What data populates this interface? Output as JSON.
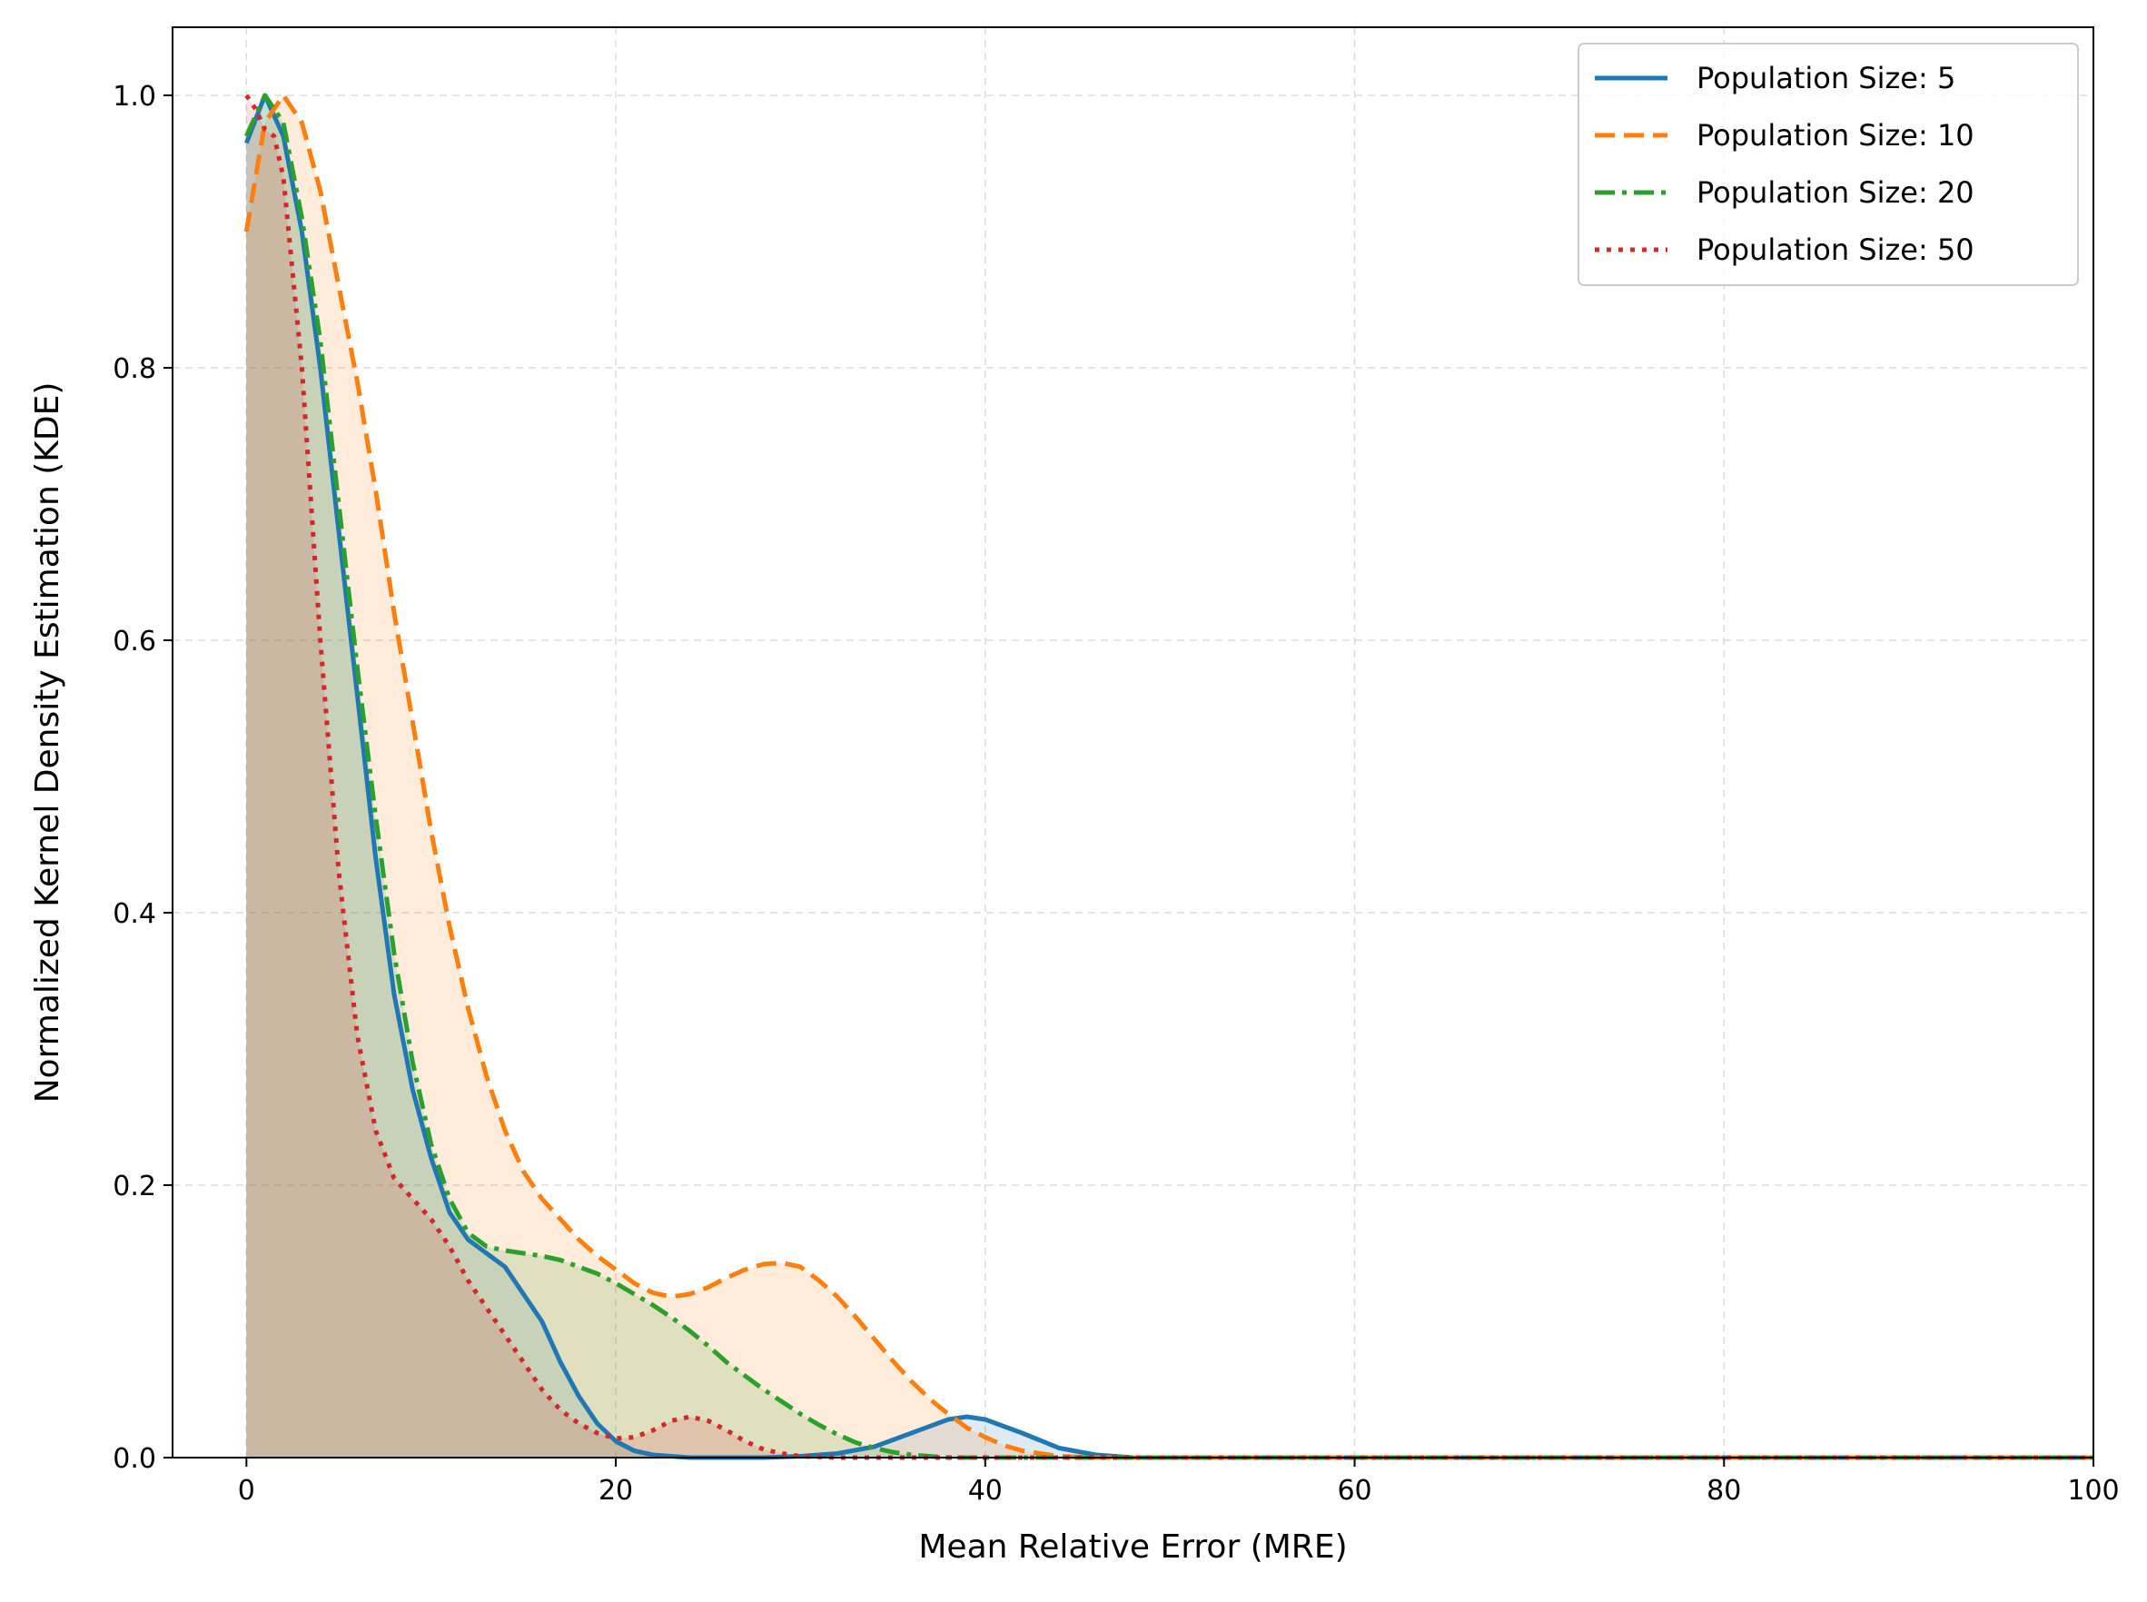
{
  "chart_data": {
    "type": "area",
    "title": "",
    "xlabel": "Mean Relative Error (MRE)",
    "ylabel": "Normalized Kernel Density Estimation (KDE)",
    "xlim": [
      -4,
      100
    ],
    "ylim": [
      0,
      1.05
    ],
    "xticks": [
      0,
      20,
      40,
      60,
      80,
      100
    ],
    "yticks": [
      0.0,
      0.2,
      0.4,
      0.6,
      0.8,
      1.0
    ],
    "xtick_labels": [
      "0",
      "20",
      "40",
      "60",
      "80",
      "100"
    ],
    "ytick_labels": [
      "0.0",
      "0.2",
      "0.4",
      "0.6",
      "0.8",
      "1.0"
    ],
    "grid": true,
    "legend_position": "top-right",
    "series": [
      {
        "name": "Population Size: 5",
        "color": "#1f77b4",
        "dash": "solid",
        "x": [
          0,
          1,
          2,
          3,
          4,
          5,
          6,
          7,
          8,
          9,
          10,
          11,
          12,
          13,
          14,
          15,
          16,
          17,
          18,
          19,
          20,
          21,
          22,
          24,
          26,
          28,
          30,
          32,
          34,
          36,
          38,
          39,
          40,
          42,
          44,
          46,
          48,
          50,
          60,
          70,
          80,
          90,
          100
        ],
        "y": [
          0.965,
          1.0,
          0.97,
          0.9,
          0.8,
          0.68,
          0.56,
          0.44,
          0.34,
          0.27,
          0.22,
          0.18,
          0.16,
          0.15,
          0.14,
          0.12,
          0.1,
          0.07,
          0.045,
          0.025,
          0.012,
          0.005,
          0.002,
          0.0,
          0.0,
          0.0,
          0.001,
          0.003,
          0.008,
          0.018,
          0.028,
          0.03,
          0.028,
          0.018,
          0.007,
          0.002,
          0.0,
          0.0,
          0.0,
          0.0,
          0.0,
          0.0,
          0.0
        ]
      },
      {
        "name": "Population Size: 10",
        "color": "#ff7f0e",
        "dash": "dashed",
        "x": [
          0,
          1,
          2,
          3,
          4,
          5,
          6,
          7,
          8,
          9,
          10,
          11,
          12,
          13,
          14,
          15,
          16,
          17,
          18,
          19,
          20,
          21,
          22,
          23,
          24,
          25,
          26,
          27,
          28,
          29,
          30,
          31,
          32,
          33,
          34,
          35,
          36,
          37,
          38,
          39,
          40,
          41,
          42,
          43,
          44,
          46,
          48,
          50,
          60,
          70,
          80,
          90,
          100
        ],
        "y": [
          0.9,
          0.98,
          1.0,
          0.98,
          0.93,
          0.86,
          0.79,
          0.71,
          0.62,
          0.54,
          0.46,
          0.39,
          0.33,
          0.28,
          0.24,
          0.21,
          0.19,
          0.175,
          0.16,
          0.148,
          0.138,
          0.128,
          0.121,
          0.118,
          0.12,
          0.125,
          0.132,
          0.138,
          0.142,
          0.143,
          0.14,
          0.13,
          0.118,
          0.103,
          0.087,
          0.071,
          0.056,
          0.043,
          0.032,
          0.022,
          0.015,
          0.009,
          0.005,
          0.003,
          0.001,
          0.0,
          0.0,
          0.0,
          0.0,
          0.0,
          0.0,
          0.0,
          0.0
        ]
      },
      {
        "name": "Population Size: 20",
        "color": "#2ca02c",
        "dash": "dashdot",
        "x": [
          0,
          1,
          2,
          3,
          4,
          5,
          6,
          7,
          8,
          9,
          10,
          11,
          12,
          13,
          14,
          15,
          16,
          17,
          18,
          19,
          20,
          21,
          22,
          23,
          24,
          25,
          26,
          27,
          28,
          29,
          30,
          31,
          32,
          33,
          34,
          35,
          36,
          37,
          38,
          40,
          42,
          44,
          46,
          50,
          60,
          70,
          80,
          90,
          100
        ],
        "y": [
          0.97,
          1.0,
          0.98,
          0.91,
          0.82,
          0.7,
          0.58,
          0.47,
          0.37,
          0.29,
          0.23,
          0.19,
          0.165,
          0.155,
          0.152,
          0.15,
          0.148,
          0.145,
          0.14,
          0.135,
          0.128,
          0.12,
          0.112,
          0.103,
          0.093,
          0.082,
          0.07,
          0.06,
          0.05,
          0.041,
          0.032,
          0.024,
          0.017,
          0.011,
          0.007,
          0.004,
          0.002,
          0.001,
          0.0,
          0.0,
          0.0,
          0.0,
          0.0,
          0.0,
          0.0,
          0.0,
          0.0,
          0.0,
          0.0
        ]
      },
      {
        "name": "Population Size: 50",
        "color": "#d62728",
        "dash": "dotted",
        "x": [
          0,
          0.5,
          1,
          1.5,
          2,
          3,
          4,
          5,
          6,
          7,
          8,
          9,
          10,
          11,
          12,
          13,
          14,
          15,
          16,
          17,
          18,
          19,
          20,
          21,
          22,
          23,
          24,
          25,
          26,
          27,
          28,
          29,
          30,
          32,
          34,
          36,
          40,
          50,
          60,
          70,
          80,
          90,
          100
        ],
        "y": [
          1.0,
          0.99,
          0.975,
          0.97,
          0.94,
          0.8,
          0.6,
          0.43,
          0.31,
          0.24,
          0.205,
          0.19,
          0.175,
          0.155,
          0.13,
          0.11,
          0.09,
          0.07,
          0.05,
          0.035,
          0.025,
          0.018,
          0.014,
          0.015,
          0.02,
          0.027,
          0.03,
          0.027,
          0.02,
          0.012,
          0.006,
          0.003,
          0.001,
          0.0,
          0.0,
          0.0,
          0.0,
          0.0,
          0.0,
          0.0,
          0.0,
          0.0,
          0.0
        ]
      }
    ]
  }
}
